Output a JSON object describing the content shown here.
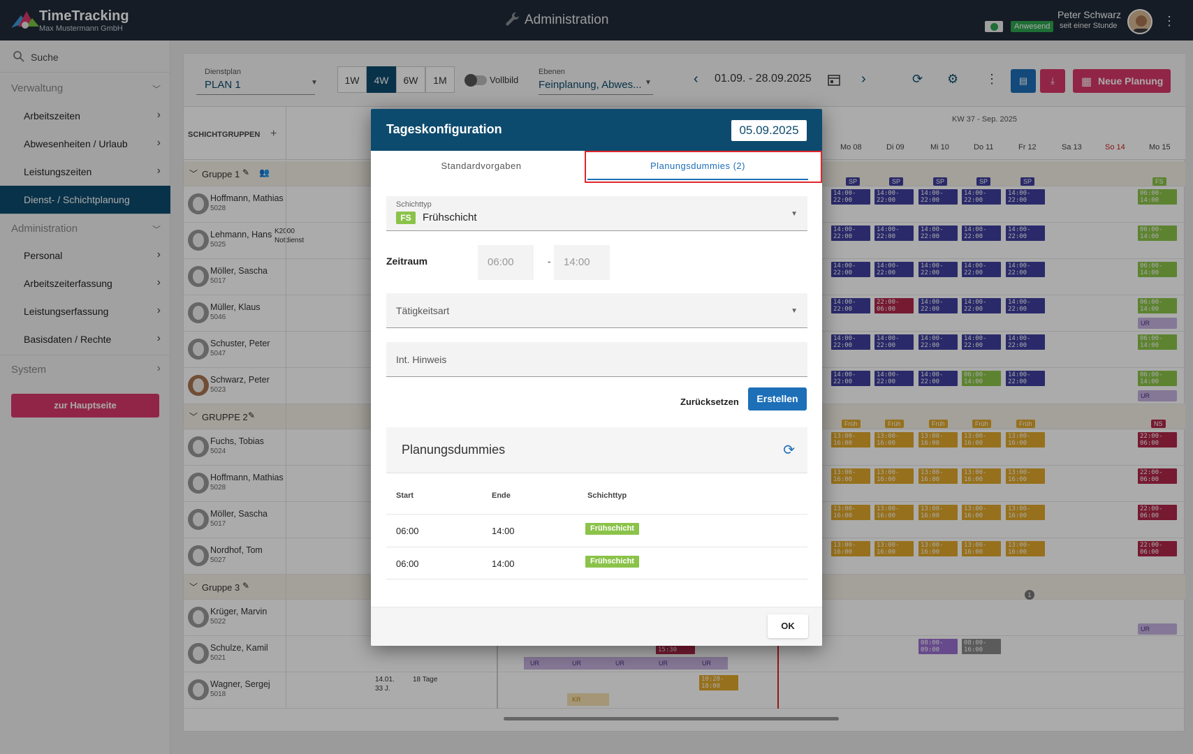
{
  "header": {
    "app_name": "TimeTracking",
    "company": "Max Mustermann GmbH",
    "page_title": "Administration",
    "user_name": "Peter Schwarz",
    "status": "Anwesend",
    "status_since": "seit einer Stunde"
  },
  "sidebar": {
    "search": "Suche",
    "sections": [
      {
        "title": "Verwaltung",
        "items": [
          "Arbeitszeiten",
          "Abwesenheiten / Urlaub",
          "Leistungszeiten",
          "Dienst- / Schichtplanung"
        ]
      },
      {
        "title": "Administration",
        "items": [
          "Personal",
          "Arbeitszeiterfassung",
          "Leistungserfassung",
          "Basisdaten / Rechte"
        ]
      },
      {
        "title": "System",
        "items": []
      }
    ],
    "home_button": "zur Hauptseite"
  },
  "toolbar": {
    "dienstplan_label": "Dienstplan",
    "dienstplan_value": "PLAN 1",
    "ranges": [
      "1W",
      "4W",
      "6W",
      "1M"
    ],
    "active_range": "4W",
    "vollbild": "Vollbild",
    "ebenen_label": "Ebenen",
    "ebenen_value": "Feinplanung, Abwes...",
    "date_range": "01.09. - 28.09.2025",
    "new_button": "Neue Planung"
  },
  "grid": {
    "schichtgruppen": "SCHICHTGRUPPEN",
    "week_label": "KW 37 - Sep. 2025",
    "days": [
      "Mo 08",
      "Di 09",
      "Mi 10",
      "Do 11",
      "Fr 12",
      "Sa 13",
      "So 14",
      "Mo 15"
    ],
    "groups": [
      {
        "name": "Gruppe 1",
        "employees": [
          {
            "name": "Hoffmann, Mathias",
            "id": "5028"
          },
          {
            "name": "Lehmann, Hans",
            "id": "5025",
            "note": "K2000\nNotdienst"
          },
          {
            "name": "Möller, Sascha",
            "id": "5017"
          },
          {
            "name": "Müller, Klaus",
            "id": "5046"
          },
          {
            "name": "Schuster, Peter",
            "id": "5047"
          },
          {
            "name": "Schwarz, Peter",
            "id": "5023"
          }
        ]
      },
      {
        "name": "GRUPPE 2",
        "employees": [
          {
            "name": "Fuchs, Tobias",
            "id": "5024"
          },
          {
            "name": "Hoffmann, Mathias",
            "id": "5028"
          },
          {
            "name": "Möller, Sascha",
            "id": "5017"
          },
          {
            "name": "Nordhof, Tom",
            "id": "5027"
          }
        ]
      },
      {
        "name": "Gruppe 3",
        "employees": [
          {
            "name": "Krüger, Marvin",
            "id": "5022"
          },
          {
            "name": "Schulze, Kamil",
            "id": "5021"
          },
          {
            "name": "Wagner, Sergej",
            "id": "5018",
            "note": "14.01.\n33 J."
          }
        ]
      }
    ],
    "wagner_duration": "18 Tage",
    "tag_sp": "SP",
    "tag_frueh": "Früh",
    "tag_fs": "FS",
    "tag_ns": "NS",
    "tag_ur": "UR",
    "tag_kr": "KR",
    "shift_evening": "14:00-\n22:00",
    "shift_night": "22:00-\n06:00",
    "shift_morning": "06:00-\n14:00",
    "shift_late": "13:00-\n16:00",
    "shift_night2": "22:00-\n06:00",
    "shift_misc1": "08:00-\n09:00",
    "shift_misc2": "08:00-\n16:00",
    "shift_misc3": "10:28-\n18:00",
    "shift_misc4": "15:30",
    "count_badge": "1"
  },
  "dialog": {
    "title": "Tageskonfiguration",
    "date": "05.09.2025",
    "tabs": [
      "Standardvorgaben",
      "Planungsdummies (2)"
    ],
    "schichttyp_label": "Schichttyp",
    "schichttyp_code": "FS",
    "schichttyp_value": "Frühschicht",
    "zeitraum_label": "Zeitraum",
    "zeit_von": "06:00",
    "zeit_dash": "-",
    "zeit_bis": "14:00",
    "taetigkeitsart_placeholder": "Tätigkeitsart",
    "hinweis_placeholder": "Int. Hinweis",
    "reset_button": "Zurücksetzen",
    "create_button": "Erstellen",
    "dummies_title": "Planungsdummies",
    "table_headers": [
      "Start",
      "Ende",
      "Schichttyp"
    ],
    "rows": [
      {
        "start": "06:00",
        "ende": "14:00",
        "typ": "Frühschicht"
      },
      {
        "start": "06:00",
        "ende": "14:00",
        "typ": "Frühschicht"
      }
    ],
    "ok_button": "OK"
  },
  "colors": {
    "primary": "#0d4b6e",
    "accent": "#d9386a",
    "link": "#1d6fb8",
    "fs_green": "#8bc34a"
  }
}
